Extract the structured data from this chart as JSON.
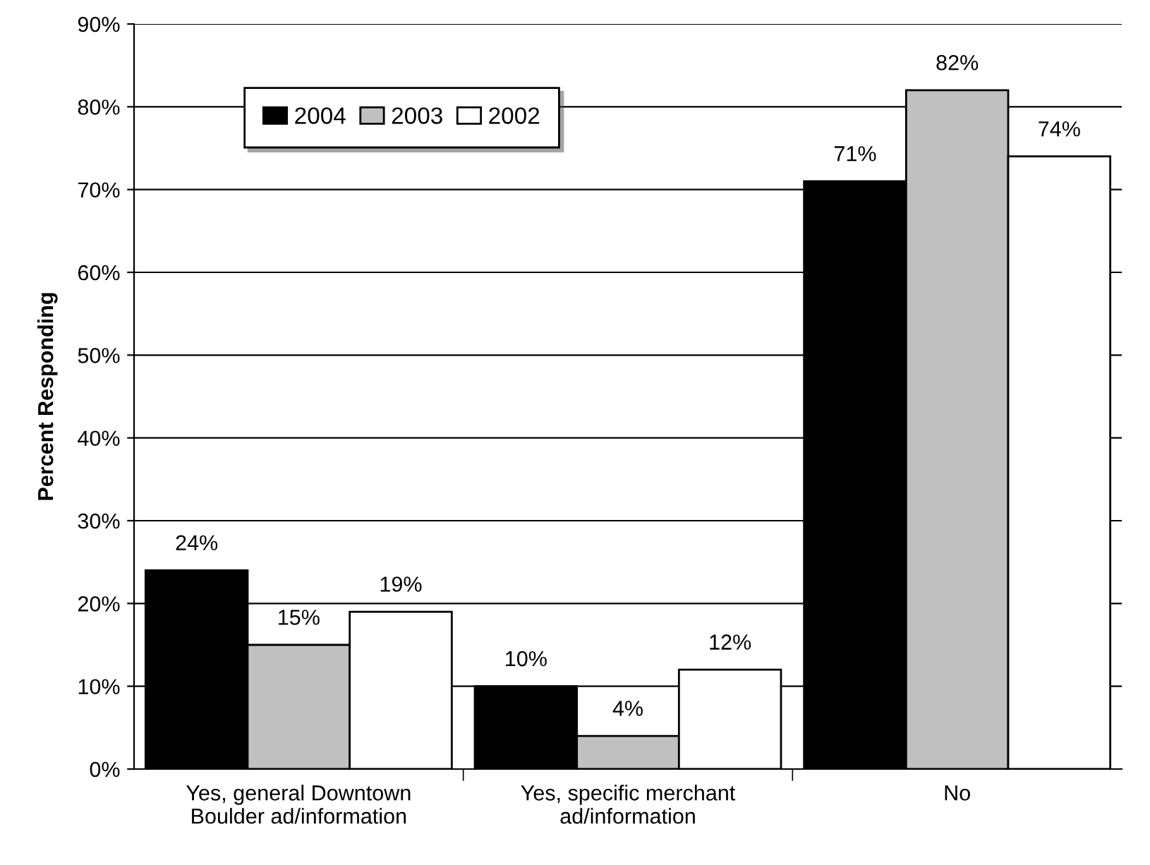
{
  "chart_data": {
    "type": "bar",
    "ylabel": "Percent Responding",
    "categories": [
      "Yes, general Downtown\nBoulder ad/information",
      "Yes, specific merchant\nad/information",
      "No"
    ],
    "series": [
      {
        "name": "2004",
        "color": "#000000",
        "values": [
          24,
          10,
          71
        ],
        "value_labels": [
          "24%",
          "10%",
          "71%"
        ]
      },
      {
        "name": "2003",
        "color": "#c0c0c0",
        "values": [
          15,
          4,
          82
        ],
        "value_labels": [
          "15%",
          "4%",
          "82%"
        ]
      },
      {
        "name": "2002",
        "color": "#ffffff",
        "values": [
          19,
          12,
          74
        ],
        "value_labels": [
          "19%",
          "12%",
          "74%"
        ]
      }
    ],
    "ylim": [
      0,
      90
    ],
    "yticks": [
      {
        "value": 0,
        "label": "0%"
      },
      {
        "value": 10,
        "label": "10%"
      },
      {
        "value": 20,
        "label": "20%"
      },
      {
        "value": 30,
        "label": "30%"
      },
      {
        "value": 40,
        "label": "40%"
      },
      {
        "value": 50,
        "label": "50%"
      },
      {
        "value": 60,
        "label": "60%"
      },
      {
        "value": 70,
        "label": "70%"
      },
      {
        "value": 80,
        "label": "80%"
      },
      {
        "value": 90,
        "label": "90%"
      }
    ],
    "grid": "y",
    "legend": "top left"
  }
}
